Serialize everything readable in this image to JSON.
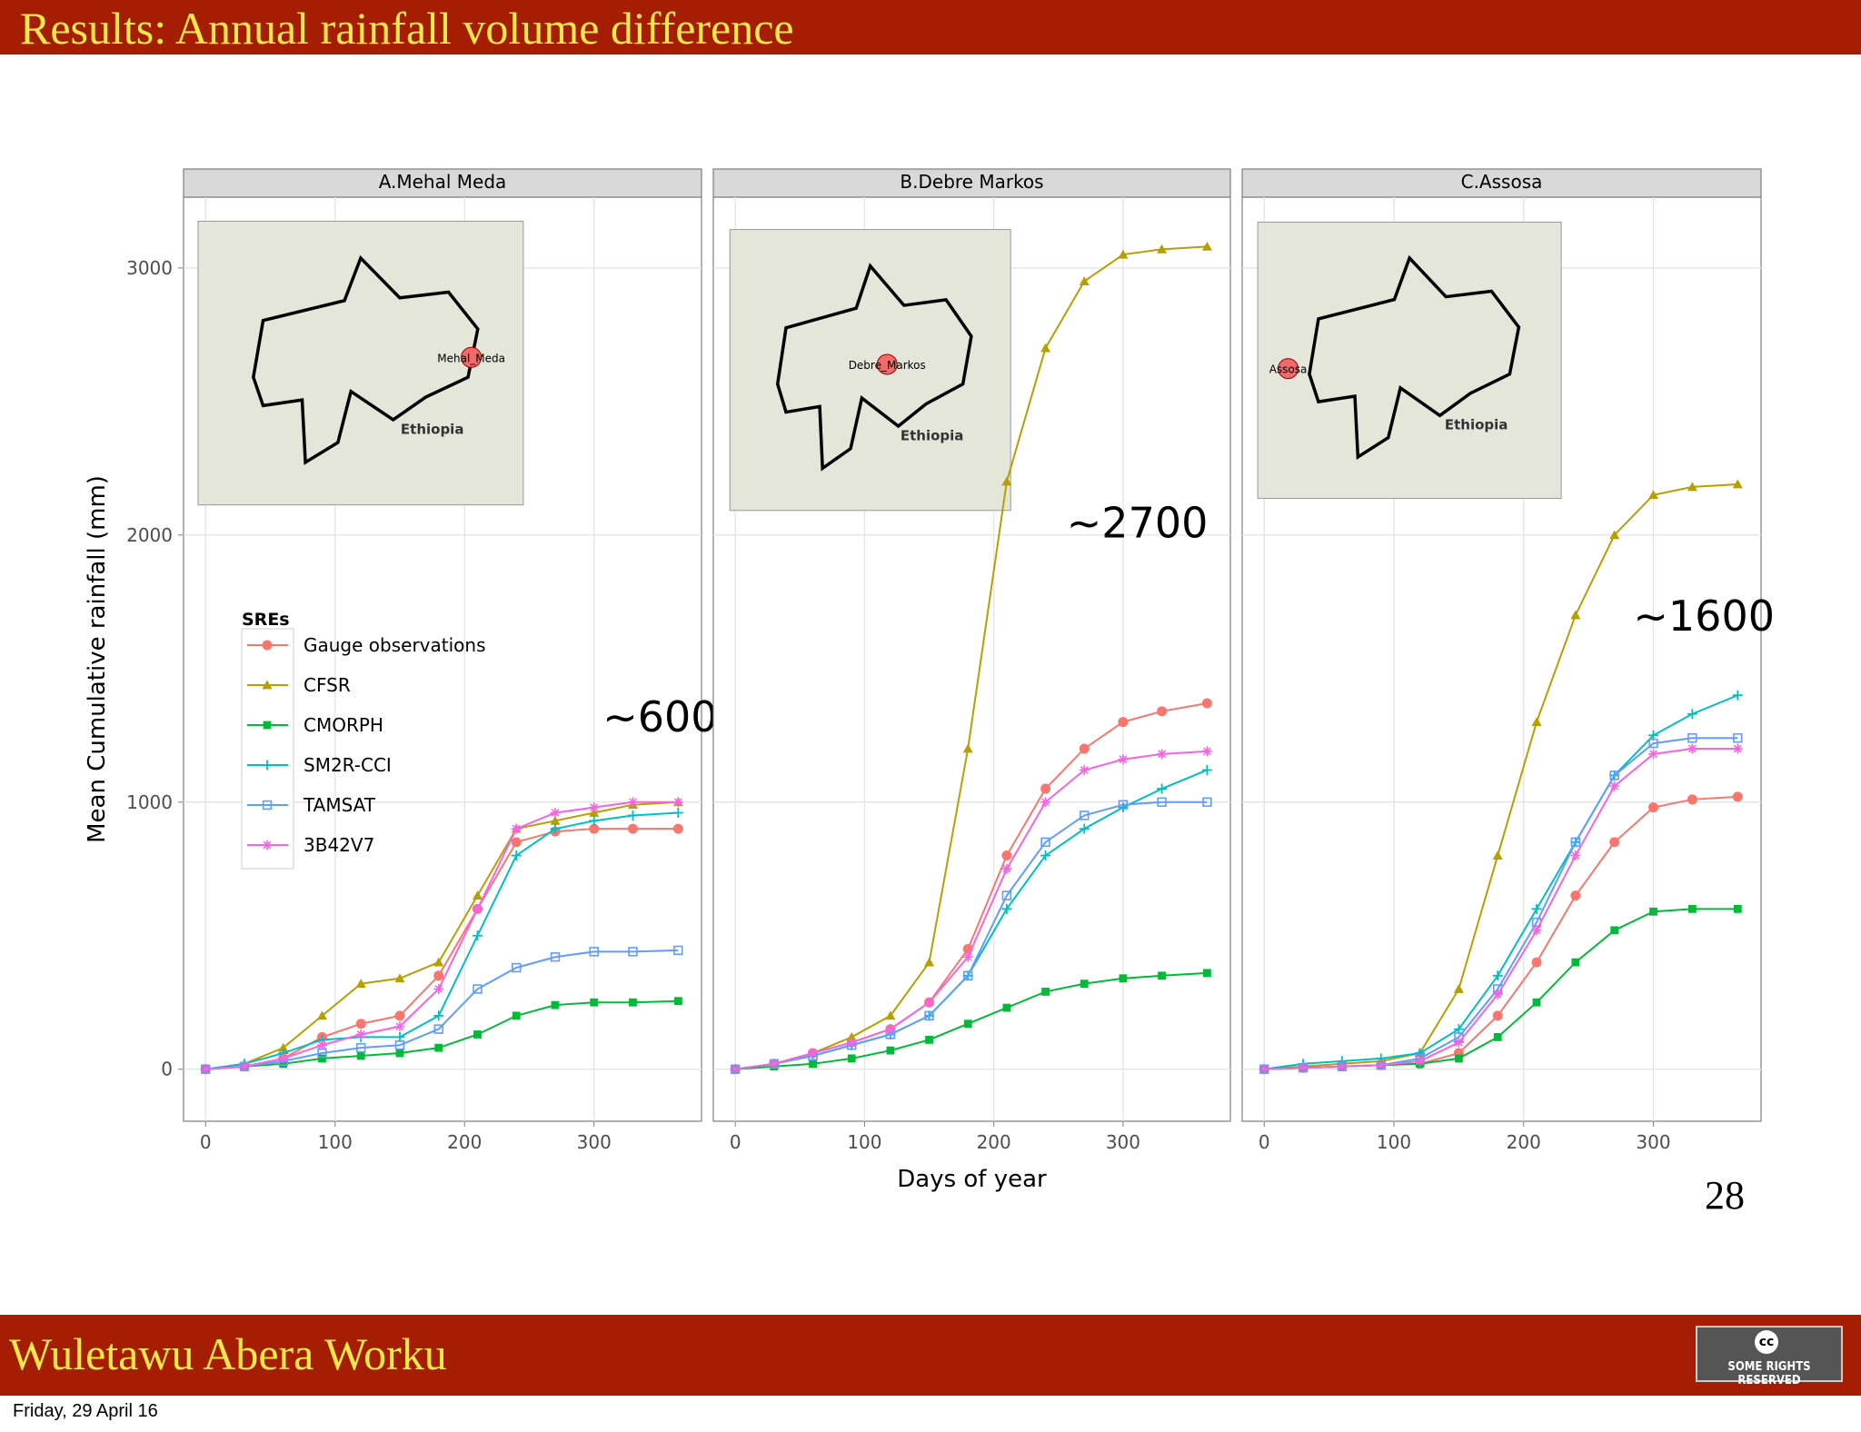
{
  "slide": {
    "title": "Results: Annual rainfall volume difference",
    "author": "Wuletawu Abera Worku",
    "date": "Friday, 29 April 16",
    "page": 28,
    "badge": "SOME RIGHTS RESERVED"
  },
  "chart_data": [
    {
      "type": "line",
      "title": "A.Mehal Meda",
      "ylabel": "Mean Cumulative rainfall (mm)",
      "legend_title": "SREs",
      "legend": "inside",
      "grid": true,
      "annotation": "~600",
      "inset": {
        "site": "Mehal_Meda",
        "country": "Ethiopia"
      },
      "x": [
        0,
        30,
        60,
        90,
        120,
        150,
        180,
        210,
        240,
        270,
        300,
        330,
        365
      ],
      "xlim": [
        -17,
        383
      ],
      "xticks": [
        0,
        100,
        200,
        300
      ],
      "ylim": [
        -195,
        3265
      ],
      "yticks": [
        0,
        1000,
        2000,
        3000
      ],
      "series": [
        {
          "name": "Gauge observations",
          "color": "#F8766D",
          "values": [
            0,
            10,
            40,
            120,
            170,
            200,
            350,
            600,
            850,
            890,
            900,
            900,
            900
          ]
        },
        {
          "name": "CFSR",
          "color": "#B79F00",
          "values": [
            0,
            20,
            80,
            200,
            320,
            340,
            400,
            650,
            900,
            930,
            960,
            990,
            1000
          ]
        },
        {
          "name": "CMORPH",
          "color": "#00BA38",
          "values": [
            0,
            10,
            20,
            40,
            50,
            60,
            80,
            130,
            200,
            240,
            250,
            250,
            255
          ]
        },
        {
          "name": "SM2R-CCI",
          "color": "#00BFC4",
          "values": [
            0,
            20,
            60,
            110,
            120,
            120,
            200,
            500,
            800,
            900,
            930,
            950,
            960
          ]
        },
        {
          "name": "TAMSAT",
          "color": "#619CFF",
          "values": [
            0,
            10,
            30,
            60,
            80,
            90,
            150,
            300,
            380,
            420,
            440,
            440,
            445
          ]
        },
        {
          "name": "3B42V7",
          "color": "#F564E3",
          "values": [
            0,
            10,
            40,
            90,
            130,
            160,
            300,
            600,
            900,
            960,
            980,
            1000,
            1000
          ]
        }
      ]
    },
    {
      "type": "line",
      "title": "B.Debre Markos",
      "xlabel": "Days of year",
      "grid": true,
      "annotation": "~2700",
      "inset": {
        "site": "Debre_Markos",
        "country": "Ethiopia"
      },
      "x": [
        0,
        30,
        60,
        90,
        120,
        150,
        180,
        210,
        240,
        270,
        300,
        330,
        365
      ],
      "xlim": [
        -17,
        383
      ],
      "xticks": [
        0,
        100,
        200,
        300
      ],
      "ylim": [
        -195,
        3265
      ],
      "yticks": [
        0,
        1000,
        2000,
        3000
      ],
      "series": [
        {
          "values": [
            0,
            20,
            60,
            100,
            150,
            250,
            450,
            800,
            1050,
            1200,
            1300,
            1340,
            1370
          ]
        },
        {
          "values": [
            0,
            20,
            60,
            120,
            200,
            400,
            1200,
            2200,
            2700,
            2950,
            3050,
            3070,
            3080
          ]
        },
        {
          "values": [
            0,
            10,
            20,
            40,
            70,
            110,
            170,
            230,
            290,
            320,
            340,
            350,
            360
          ]
        },
        {
          "values": [
            0,
            20,
            50,
            90,
            130,
            200,
            350,
            600,
            800,
            900,
            980,
            1050,
            1120
          ]
        },
        {
          "values": [
            0,
            20,
            50,
            90,
            130,
            200,
            350,
            650,
            850,
            950,
            990,
            1000,
            1000
          ]
        },
        {
          "values": [
            0,
            20,
            60,
            100,
            150,
            250,
            420,
            750,
            1000,
            1120,
            1160,
            1180,
            1190
          ]
        }
      ]
    },
    {
      "type": "line",
      "title": "C.Assosa",
      "grid": true,
      "annotation": "~1600",
      "inset": {
        "site": "Assosa",
        "country": "Ethiopia"
      },
      "x": [
        0,
        30,
        60,
        90,
        120,
        150,
        180,
        210,
        240,
        270,
        300,
        330,
        365
      ],
      "xlim": [
        -17,
        383
      ],
      "xticks": [
        0,
        100,
        200,
        300
      ],
      "ylim": [
        -195,
        3265
      ],
      "yticks": [
        0,
        1000,
        2000,
        3000
      ],
      "series": [
        {
          "values": [
            0,
            5,
            10,
            15,
            20,
            60,
            200,
            400,
            650,
            850,
            980,
            1010,
            1020
          ]
        },
        {
          "values": [
            0,
            10,
            20,
            30,
            60,
            300,
            800,
            1300,
            1700,
            2000,
            2150,
            2180,
            2190
          ]
        },
        {
          "values": [
            0,
            5,
            10,
            15,
            20,
            40,
            120,
            250,
            400,
            520,
            590,
            600,
            600
          ]
        },
        {
          "values": [
            0,
            20,
            30,
            40,
            60,
            150,
            350,
            600,
            850,
            1100,
            1250,
            1330,
            1400
          ]
        },
        {
          "values": [
            0,
            5,
            10,
            15,
            40,
            120,
            300,
            550,
            850,
            1100,
            1220,
            1240,
            1240
          ]
        },
        {
          "values": [
            0,
            5,
            10,
            15,
            30,
            100,
            280,
            520,
            800,
            1060,
            1180,
            1200,
            1200
          ]
        }
      ]
    }
  ]
}
